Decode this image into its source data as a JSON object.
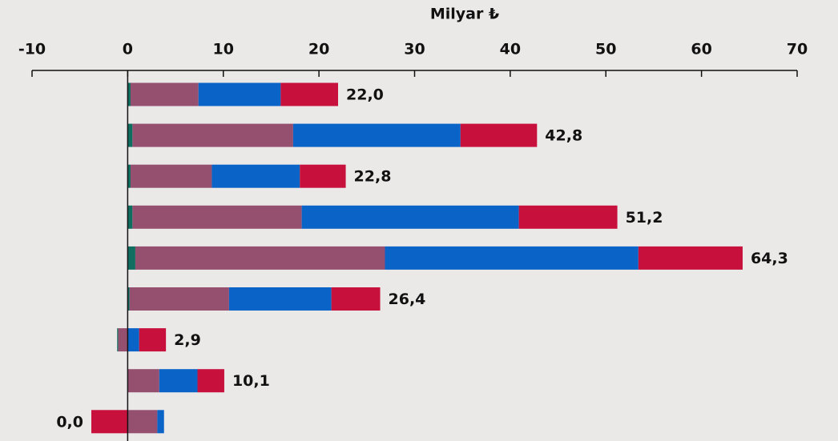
{
  "chart_data": {
    "type": "bar",
    "orientation": "horizontal",
    "stacked": true,
    "axis_label": "Milyar ₺",
    "categories": [
      null,
      null,
      null,
      null,
      null,
      null,
      null,
      null,
      null
    ],
    "series": [
      {
        "color": "#0f6e5f",
        "values": [
          0.3,
          0.5,
          0.3,
          0.5,
          0.8,
          0.2,
          -0.1,
          0,
          0
        ]
      },
      {
        "color": "#955070",
        "values": [
          7.1,
          16.8,
          8.5,
          17.7,
          26.1,
          10.4,
          -1.0,
          3.3,
          3.1
        ]
      },
      {
        "color": "#0a64c8",
        "values": [
          8.6,
          17.5,
          9.2,
          22.7,
          26.5,
          10.7,
          1.2,
          4.0,
          0.7
        ]
      },
      {
        "color": "#c8103c",
        "values": [
          6.0,
          8.0,
          4.8,
          10.3,
          10.9,
          5.1,
          2.8,
          2.8,
          -3.8
        ]
      }
    ],
    "totals": [
      22.0,
      42.8,
      22.8,
      51.2,
      64.3,
      26.4,
      2.9,
      10.1,
      0.0
    ],
    "total_labels": [
      "22,0",
      "42,8",
      "22,8",
      "51,2",
      "64,3",
      "26,4",
      "2,9",
      "10,1",
      "0,0"
    ],
    "xlim": [
      -10,
      70
    ],
    "xticks": [
      -10,
      0,
      10,
      20,
      30,
      40,
      50,
      60,
      70
    ]
  }
}
